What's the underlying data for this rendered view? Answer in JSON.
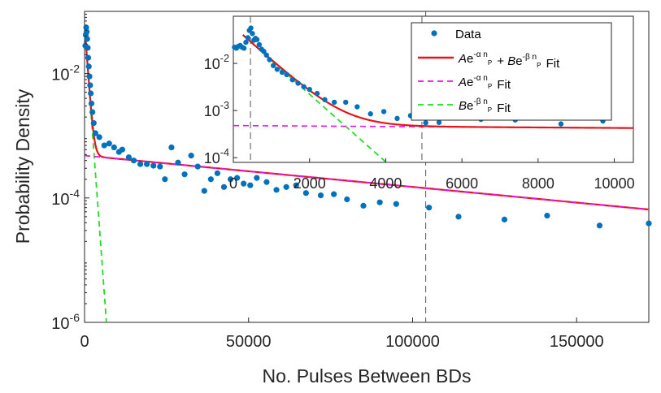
{
  "chart_data": [
    {
      "id": "main",
      "type": "scatter",
      "xlabel": "No. Pulses Between BDs",
      "ylabel": "Probability Density",
      "xlim": [
        0,
        172000
      ],
      "ylim_log10": [
        -6,
        -1
      ],
      "yscale": "log",
      "x_ticks": [
        0,
        50000,
        100000,
        150000
      ],
      "x_tick_labels": [
        "0",
        "50000",
        "100000",
        "150000"
      ],
      "y_ticks_log10": [
        -6,
        -4,
        -2
      ],
      "y_tick_labels": [
        {
          "base": "10",
          "exp": "-6"
        },
        {
          "base": "10",
          "exp": "-4"
        },
        {
          "base": "10",
          "exp": "-2"
        }
      ],
      "vline_x": 104000,
      "series": [
        {
          "name": "Data",
          "color": "#0072BD",
          "points": [
            [
              200,
              0.028
            ],
            [
              350,
              0.042
            ],
            [
              500,
              0.055
            ],
            [
              650,
              0.047
            ],
            [
              800,
              0.036
            ],
            [
              950,
              0.026
            ],
            [
              1100,
              0.018
            ],
            [
              1300,
              0.013
            ],
            [
              1500,
              0.009
            ],
            [
              1700,
              0.0065
            ],
            [
              1900,
              0.0048
            ],
            [
              2100,
              0.0033
            ],
            [
              2400,
              0.0024
            ],
            [
              2800,
              0.0016
            ],
            [
              3300,
              0.0011
            ],
            [
              4500,
              0.00095
            ],
            [
              6000,
              0.0007
            ],
            [
              7500,
              0.00075
            ],
            [
              9000,
              0.00065
            ],
            [
              10500,
              0.00055
            ],
            [
              11500,
              0.0006
            ],
            [
              13500,
              0.00045
            ],
            [
              15000,
              0.0004
            ],
            [
              17000,
              0.00035
            ],
            [
              19000,
              0.00035
            ],
            [
              21000,
              0.00033
            ],
            [
              23000,
              0.00032
            ],
            [
              24500,
              0.0002
            ],
            [
              26500,
              0.00065
            ],
            [
              28500,
              0.00037
            ],
            [
              30500,
              0.00024
            ],
            [
              32500,
              0.00048
            ],
            [
              34500,
              0.00032
            ],
            [
              36500,
              0.00013
            ],
            [
              38500,
              0.0002
            ],
            [
              40500,
              0.00025
            ],
            [
              42500,
              0.00015
            ],
            [
              44500,
              0.0002
            ],
            [
              46500,
              0.00021
            ],
            [
              48500,
              0.00017
            ],
            [
              50500,
              0.00016
            ],
            [
              52500,
              0.00021
            ],
            [
              55500,
              0.00018
            ],
            [
              58500,
              0.000135
            ],
            [
              61500,
              0.00015
            ],
            [
              64500,
              0.00016
            ],
            [
              67500,
              0.00012
            ],
            [
              72000,
              0.00011
            ],
            [
              76000,
              0.000115
            ],
            [
              80000,
              9.5e-05
            ],
            [
              85000,
              7.5e-05
            ],
            [
              90000,
              8.5e-05
            ],
            [
              95000,
              8e-05
            ],
            [
              105000,
              7e-05
            ],
            [
              114000,
              5e-05
            ],
            [
              128000,
              4.5e-05
            ],
            [
              141000,
              5.2e-05
            ],
            [
              157000,
              3.6e-05
            ],
            [
              172000,
              3.9e-05
            ]
          ]
        },
        {
          "name": "Ae^{-α n_P} + Be^{-β n_P} Fit",
          "color": "#E6141A",
          "A": 0.00048,
          "alpha": 1.16e-05,
          "B": 0.06,
          "beta": 0.00165,
          "x_start": 250
        },
        {
          "name": "Ae^{-α n_P} Fit",
          "color": "#E614E6",
          "A": 0.00048,
          "alpha": 1.16e-05
        },
        {
          "name": "Be^{-β n_P} Fit",
          "color": "#22DD22",
          "B": 0.06,
          "beta": 0.00165,
          "x_start": 250
        }
      ]
    },
    {
      "id": "inset",
      "type": "scatter",
      "xlim": [
        0,
        10500
      ],
      "ylim_log10": [
        -4.1,
        -1.0
      ],
      "yscale": "log",
      "x_ticks": [
        0,
        2000,
        4000,
        6000,
        8000,
        10000
      ],
      "x_tick_labels": [
        "0",
        "2000",
        "4000",
        "6000",
        "8000",
        "10000"
      ],
      "y_ticks_log10": [
        -4,
        -3,
        -2
      ],
      "y_tick_labels": [
        {
          "base": "10",
          "exp": "-4"
        },
        {
          "base": "10",
          "exp": "-3"
        },
        {
          "base": "10",
          "exp": "-2"
        }
      ],
      "vline_x": [
        450,
        4950
      ],
      "data_points": [
        [
          30,
          0.022
        ],
        [
          80,
          0.021
        ],
        [
          130,
          0.023
        ],
        [
          180,
          0.024
        ],
        [
          230,
          0.022
        ],
        [
          280,
          0.021
        ],
        [
          330,
          0.028
        ],
        [
          380,
          0.035
        ],
        [
          420,
          0.05
        ],
        [
          460,
          0.056
        ],
        [
          500,
          0.043
        ],
        [
          540,
          0.031
        ],
        [
          580,
          0.034
        ],
        [
          620,
          0.032
        ],
        [
          680,
          0.025
        ],
        [
          740,
          0.02
        ],
        [
          800,
          0.018
        ],
        [
          870,
          0.015
        ],
        [
          950,
          0.012
        ],
        [
          1050,
          0.009
        ],
        [
          1150,
          0.0075
        ],
        [
          1280,
          0.0065
        ],
        [
          1400,
          0.0058
        ],
        [
          1550,
          0.0045
        ],
        [
          1700,
          0.0038
        ],
        [
          1850,
          0.0032
        ],
        [
          2000,
          0.0028
        ],
        [
          2200,
          0.0023
        ],
        [
          2400,
          0.0017
        ],
        [
          2650,
          0.0015
        ],
        [
          2950,
          0.0015
        ],
        [
          3250,
          0.0012
        ],
        [
          3600,
          0.00085
        ],
        [
          3950,
          0.00095
        ],
        [
          4300,
          0.00068
        ],
        [
          4650,
          0.00078
        ],
        [
          5050,
          0.00055
        ],
        [
          5400,
          0.00056
        ],
        [
          5800,
          0.00072
        ],
        [
          6500,
          0.00065
        ],
        [
          7400,
          0.00063
        ],
        [
          8600,
          0.00052
        ],
        [
          9700,
          0.0006
        ]
      ]
    }
  ],
  "legend": {
    "placement": "top-right of inset",
    "entries": [
      {
        "label": "Data",
        "color": "#0072BD"
      },
      {
        "label": "Ae^{-α n_P} + Be^{-β n_P} Fit",
        "color": "#E6141A"
      },
      {
        "label": "Ae^{-α n_P} Fit",
        "color": "#E614E6"
      },
      {
        "label": "Be^{-β n_P} Fit",
        "color": "#22DD22"
      }
    ]
  }
}
